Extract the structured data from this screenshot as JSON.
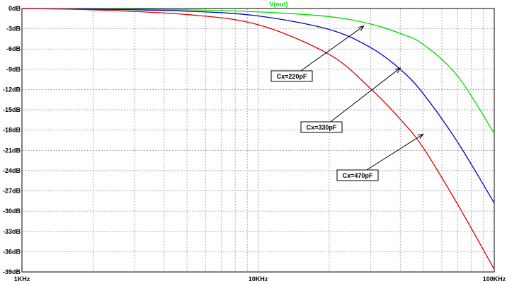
{
  "chart_data": {
    "type": "line",
    "title": "V(out)",
    "xscale": "log",
    "xlim": [
      1000,
      100000
    ],
    "ylim": [
      -39,
      0
    ],
    "grid": true,
    "x_ticks": [
      {
        "value": 1000,
        "label": "1KHz"
      },
      {
        "value": 10000,
        "label": "10KHz"
      },
      {
        "value": 100000,
        "label": "100KHz"
      }
    ],
    "y_ticks": [
      {
        "value": 0,
        "label": "0dB"
      },
      {
        "value": -3,
        "label": "-3dB"
      },
      {
        "value": -6,
        "label": "-6dB"
      },
      {
        "value": -9,
        "label": "-9dB"
      },
      {
        "value": -12,
        "label": "-12dB"
      },
      {
        "value": -15,
        "label": "-15dB"
      },
      {
        "value": -18,
        "label": "-18dB"
      },
      {
        "value": -21,
        "label": "-21dB"
      },
      {
        "value": -24,
        "label": "-24dB"
      },
      {
        "value": -27,
        "label": "-27dB"
      },
      {
        "value": -30,
        "label": "-30dB"
      },
      {
        "value": -33,
        "label": "-33dB"
      },
      {
        "value": -36,
        "label": "-36dB"
      },
      {
        "value": -39,
        "label": "-39dB"
      }
    ],
    "series": [
      {
        "color": "#00dd00",
        "x": [
          1000,
          2000,
          5000,
          10000,
          20000,
          30000,
          40000,
          50000,
          70000,
          100000
        ],
        "y": [
          0,
          -0.06,
          -0.2,
          -0.5,
          -1.2,
          -2.3,
          -3.7,
          -5.3,
          -10,
          -18.5
        ]
      },
      {
        "color": "#0000cc",
        "x": [
          1000,
          2000,
          5000,
          10000,
          20000,
          30000,
          40000,
          50000,
          70000,
          100000
        ],
        "y": [
          0,
          -0.1,
          -0.4,
          -1.1,
          -3.1,
          -5.8,
          -9,
          -12.6,
          -19.8,
          -28.8
        ]
      },
      {
        "color": "#dd0000",
        "x": [
          1000,
          2000,
          5000,
          10000,
          20000,
          30000,
          40000,
          50000,
          70000,
          100000
        ],
        "y": [
          0,
          -0.2,
          -0.9,
          -2.4,
          -6.8,
          -11.9,
          -16.4,
          -20.6,
          -29,
          -38.6
        ]
      }
    ],
    "annotations": [
      {
        "text": "Cx=220pF",
        "point_x": 28000,
        "point_y": -2.6
      },
      {
        "text": "Cx=330pF",
        "point_x": 40000,
        "point_y": -8.8
      },
      {
        "text": "Cx=470pF",
        "point_x": 50000,
        "point_y": -18.6
      }
    ]
  }
}
